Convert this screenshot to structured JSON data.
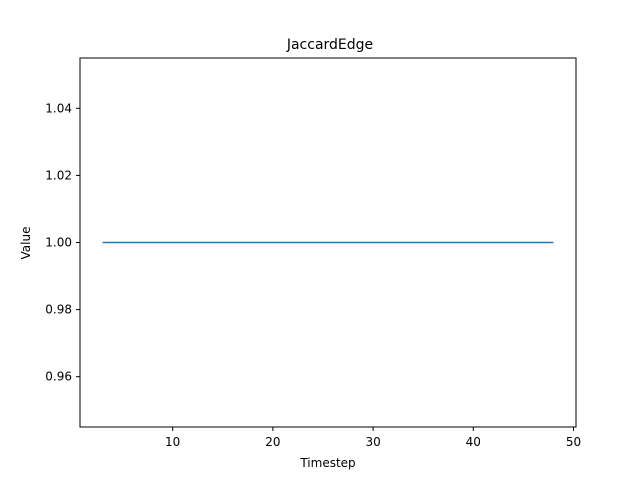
{
  "chart_data": {
    "type": "line",
    "title": "JaccardEdge",
    "xlabel": "Timestep",
    "ylabel": "Value",
    "xlim": [
      0.75,
      50.25
    ],
    "ylim": [
      0.945,
      1.055
    ],
    "xticks": [
      10,
      20,
      30,
      40,
      50
    ],
    "yticks": [
      0.96,
      0.98,
      1.0,
      1.02,
      1.04
    ],
    "xtick_labels": [
      "10",
      "20",
      "30",
      "40",
      "50"
    ],
    "ytick_labels": [
      "0.96",
      "0.98",
      "1.00",
      "1.02",
      "1.04"
    ],
    "grid": false,
    "series": [
      {
        "color": "#1f77b4",
        "x": [
          3,
          48
        ],
        "y": [
          1.0,
          1.0
        ]
      }
    ]
  }
}
